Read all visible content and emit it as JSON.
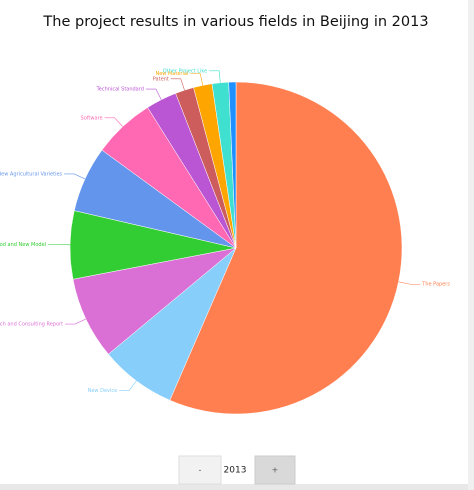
{
  "chart_data": {
    "type": "pie",
    "title": "The project results in various fields in Beijing in 2013",
    "categories": [
      "The Papers",
      "New Device",
      "Research and Consulting Report",
      "New Method and New Model",
      "New Agricultural Varieties",
      "Software",
      "Technical Standard",
      "Patent",
      "New Material",
      "Other Project Like",
      null
    ],
    "values": [
      56.3,
      7.4,
      8,
      6.6,
      6.4,
      6,
      3,
      1.8,
      1.8,
      1.6,
      0.7
    ],
    "colors": [
      "#ff7f50",
      "#87cefa",
      "#da70d6",
      "#32cd32",
      "#6495ed",
      "#ff69b4",
      "#ba55d3",
      "#cd5c5c",
      "#ffa500",
      "#40e0d0",
      "#1e90ff"
    ]
  },
  "controls": {
    "prev": "-",
    "year": "2013",
    "next": "+"
  }
}
